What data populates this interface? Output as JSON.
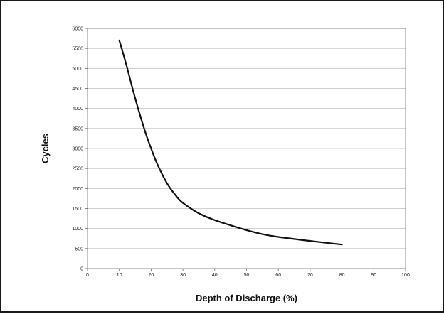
{
  "chart_data": {
    "type": "line",
    "title": "",
    "xlabel": "Depth of Discharge (%)",
    "ylabel": "Cycles",
    "xlim": [
      0,
      100
    ],
    "ylim": [
      0,
      6000
    ],
    "x_ticks": [
      "0",
      "10",
      "20",
      "30",
      "40",
      "50",
      "60",
      "70",
      "80",
      "90",
      "100"
    ],
    "y_ticks": [
      "0",
      "500",
      "1000",
      "1500",
      "2000",
      "2500",
      "3000",
      "3500",
      "4000",
      "4500",
      "5000",
      "5500",
      "6000"
    ],
    "grid": "horizontal",
    "legend": "none",
    "series": [
      {
        "color": "#111111",
        "x": [
          10,
          12,
          15,
          18,
          20,
          22,
          25,
          28,
          30,
          35,
          40,
          45,
          50,
          55,
          60,
          70,
          80
        ],
        "y": [
          5700,
          5150,
          4250,
          3450,
          3000,
          2600,
          2130,
          1800,
          1640,
          1380,
          1210,
          1080,
          960,
          860,
          790,
          690,
          600
        ]
      }
    ]
  },
  "colors": {
    "frame": "#1a1a1a",
    "plot_border": "#888888",
    "grid": "#bfbfbf",
    "line": "#111111"
  }
}
